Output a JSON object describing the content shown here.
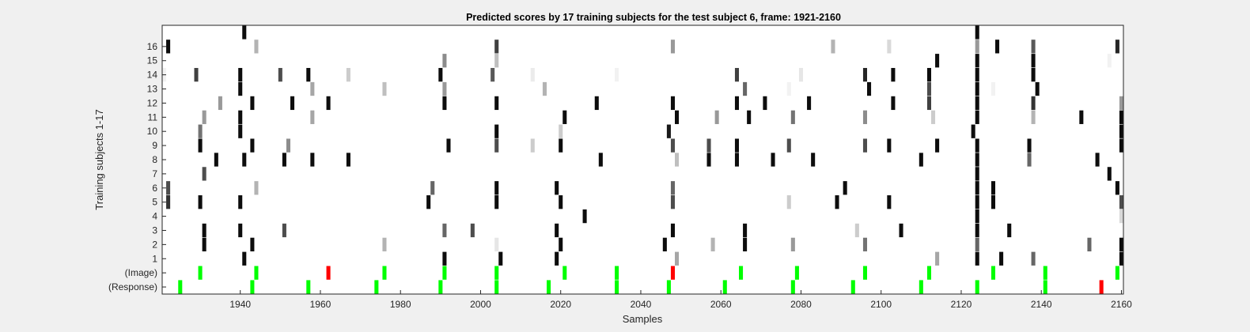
{
  "chart_data": {
    "type": "heatmap",
    "title": "Predicted scores by 17 training subjects for the test subject 6, frame: 1921-2160",
    "xlabel": "Samples",
    "ylabel": "Training subjects 1-17",
    "xlim": [
      1921,
      2160
    ],
    "xticks": [
      1940,
      1960,
      1980,
      2000,
      2020,
      2040,
      2060,
      2080,
      2100,
      2120,
      2140,
      2160
    ],
    "rows": [
      "(Response)",
      "(Image)",
      "1",
      "2",
      "3",
      "4",
      "5",
      "6",
      "7",
      "8",
      "9",
      "10",
      "11",
      "12",
      "13",
      "14",
      "15",
      "16",
      ""
    ],
    "grid": false,
    "colors": {
      "background": "#ffffff",
      "image_correct": "#00ff00",
      "image_wrong": "#ff0000",
      "response_correct": "#00ff00",
      "response_wrong": "#ff0000"
    },
    "markers": {
      "image": [
        {
          "x": 1930,
          "status": "correct"
        },
        {
          "x": 1944,
          "status": "correct"
        },
        {
          "x": 1962,
          "status": "wrong"
        },
        {
          "x": 1976,
          "status": "correct"
        },
        {
          "x": 1991,
          "status": "correct"
        },
        {
          "x": 2004,
          "status": "correct"
        },
        {
          "x": 2021,
          "status": "correct"
        },
        {
          "x": 2034,
          "status": "correct"
        },
        {
          "x": 2048,
          "status": "wrong"
        },
        {
          "x": 2065,
          "status": "correct"
        },
        {
          "x": 2079,
          "status": "correct"
        },
        {
          "x": 2096,
          "status": "correct"
        },
        {
          "x": 2112,
          "status": "correct"
        },
        {
          "x": 2128,
          "status": "correct"
        },
        {
          "x": 2141,
          "status": "correct"
        },
        {
          "x": 2159,
          "status": "correct"
        }
      ],
      "response": [
        {
          "x": 1925,
          "status": "correct"
        },
        {
          "x": 1943,
          "status": "correct"
        },
        {
          "x": 1957,
          "status": "correct"
        },
        {
          "x": 1974,
          "status": "correct"
        },
        {
          "x": 1990,
          "status": "correct"
        },
        {
          "x": 2004,
          "status": "correct"
        },
        {
          "x": 2017,
          "status": "correct"
        },
        {
          "x": 2034,
          "status": "correct"
        },
        {
          "x": 2047,
          "status": "correct"
        },
        {
          "x": 2061,
          "status": "correct"
        },
        {
          "x": 2078,
          "status": "correct"
        },
        {
          "x": 2093,
          "status": "correct"
        },
        {
          "x": 2110,
          "status": "correct"
        },
        {
          "x": 2124,
          "status": "correct"
        },
        {
          "x": 2141,
          "status": "correct"
        },
        {
          "x": 2155,
          "status": "wrong"
        }
      ]
    },
    "scores": [
      {
        "row": "1",
        "cells": [
          [
            1941,
            0.95
          ],
          [
            1991,
            0.95
          ],
          [
            2005,
            0.95
          ],
          [
            2019,
            0.95
          ],
          [
            2049,
            0.35
          ],
          [
            2114,
            0.35
          ],
          [
            2124,
            0.95
          ],
          [
            2130,
            0.95
          ],
          [
            2138,
            0.6
          ],
          [
            2160,
            0.95
          ]
        ]
      },
      {
        "row": "2",
        "cells": [
          [
            1931,
            0.95
          ],
          [
            1943,
            0.95
          ],
          [
            1976,
            0.3
          ],
          [
            2004,
            0.1
          ],
          [
            2020,
            0.95
          ],
          [
            2046,
            0.95
          ],
          [
            2058,
            0.3
          ],
          [
            2066,
            0.95
          ],
          [
            2078,
            0.4
          ],
          [
            2096,
            0.55
          ],
          [
            2124,
            0.6
          ],
          [
            2152,
            0.6
          ],
          [
            2160,
            0.95
          ]
        ]
      },
      {
        "row": "3",
        "cells": [
          [
            1931,
            0.95
          ],
          [
            1940,
            0.95
          ],
          [
            1951,
            0.7
          ],
          [
            1991,
            0.6
          ],
          [
            1998,
            0.7
          ],
          [
            2019,
            0.95
          ],
          [
            2048,
            0.95
          ],
          [
            2066,
            0.95
          ],
          [
            2094,
            0.2
          ],
          [
            2105,
            0.95
          ],
          [
            2124,
            0.95
          ],
          [
            2132,
            0.95
          ],
          [
            2161,
            0.95
          ]
        ]
      },
      {
        "row": "4",
        "cells": [
          [
            2026,
            0.95
          ],
          [
            2124,
            0.95
          ],
          [
            2160,
            0.15
          ]
        ]
      },
      {
        "row": "5",
        "cells": [
          [
            1922,
            0.8
          ],
          [
            1930,
            0.95
          ],
          [
            1940,
            0.95
          ],
          [
            1987,
            0.95
          ],
          [
            2004,
            0.95
          ],
          [
            2020,
            0.95
          ],
          [
            2048,
            0.7
          ],
          [
            2077,
            0.2
          ],
          [
            2089,
            0.95
          ],
          [
            2102,
            0.95
          ],
          [
            2124,
            0.95
          ],
          [
            2128,
            0.95
          ],
          [
            2160,
            0.7
          ]
        ]
      },
      {
        "row": "6",
        "cells": [
          [
            1922,
            0.7
          ],
          [
            1944,
            0.3
          ],
          [
            1988,
            0.6
          ],
          [
            2004,
            0.95
          ],
          [
            2019,
            0.95
          ],
          [
            2048,
            0.6
          ],
          [
            2091,
            0.95
          ],
          [
            2124,
            0.95
          ],
          [
            2128,
            0.95
          ],
          [
            2159,
            0.95
          ]
        ]
      },
      {
        "row": "7",
        "cells": [
          [
            1931,
            0.7
          ],
          [
            2124,
            0.95
          ],
          [
            2157,
            0.95
          ]
        ]
      },
      {
        "row": "8",
        "cells": [
          [
            1934,
            0.95
          ],
          [
            1941,
            0.95
          ],
          [
            1951,
            0.95
          ],
          [
            1958,
            0.95
          ],
          [
            1967,
            0.95
          ],
          [
            2030,
            0.95
          ],
          [
            2049,
            0.25
          ],
          [
            2057,
            0.95
          ],
          [
            2064,
            0.95
          ],
          [
            2073,
            0.95
          ],
          [
            2083,
            0.95
          ],
          [
            2110,
            0.95
          ],
          [
            2124,
            0.95
          ],
          [
            2137,
            0.6
          ],
          [
            2154,
            0.95
          ]
        ]
      },
      {
        "row": "9",
        "cells": [
          [
            1930,
            0.95
          ],
          [
            1943,
            0.95
          ],
          [
            1952,
            0.45
          ],
          [
            1992,
            0.95
          ],
          [
            2004,
            0.7
          ],
          [
            2013,
            0.2
          ],
          [
            2020,
            0.95
          ],
          [
            2048,
            0.7
          ],
          [
            2057,
            0.7
          ],
          [
            2064,
            0.95
          ],
          [
            2077,
            0.7
          ],
          [
            2096,
            0.7
          ],
          [
            2102,
            0.95
          ],
          [
            2114,
            0.95
          ],
          [
            2124,
            0.95
          ],
          [
            2137,
            0.95
          ],
          [
            2160,
            0.95
          ]
        ]
      },
      {
        "row": "10",
        "cells": [
          [
            1930,
            0.55
          ],
          [
            1940,
            0.95
          ],
          [
            2004,
            0.95
          ],
          [
            2020,
            0.2
          ],
          [
            2047,
            0.9
          ],
          [
            2123,
            0.95
          ],
          [
            2160,
            0.95
          ]
        ]
      },
      {
        "row": "11",
        "cells": [
          [
            1931,
            0.4
          ],
          [
            1940,
            0.95
          ],
          [
            1958,
            0.35
          ],
          [
            2021,
            0.95
          ],
          [
            2049,
            0.95
          ],
          [
            2059,
            0.4
          ],
          [
            2067,
            0.95
          ],
          [
            2078,
            0.55
          ],
          [
            2096,
            0.45
          ],
          [
            2113,
            0.2
          ],
          [
            2124,
            0.95
          ],
          [
            2138,
            0.3
          ],
          [
            2150,
            0.95
          ],
          [
            2160,
            0.95
          ]
        ]
      },
      {
        "row": "12",
        "cells": [
          [
            1935,
            0.4
          ],
          [
            1943,
            0.95
          ],
          [
            1953,
            0.95
          ],
          [
            1962,
            0.95
          ],
          [
            1991,
            0.95
          ],
          [
            2004,
            0.95
          ],
          [
            2029,
            0.95
          ],
          [
            2048,
            0.95
          ],
          [
            2064,
            0.95
          ],
          [
            2071,
            0.95
          ],
          [
            2082,
            0.95
          ],
          [
            2103,
            0.95
          ],
          [
            2112,
            0.75
          ],
          [
            2124,
            0.95
          ],
          [
            2138,
            0.8
          ],
          [
            2160,
            0.4
          ]
        ]
      },
      {
        "row": "13",
        "cells": [
          [
            1940,
            0.95
          ],
          [
            1958,
            0.35
          ],
          [
            1976,
            0.25
          ],
          [
            1991,
            0.4
          ],
          [
            2016,
            0.3
          ],
          [
            2066,
            0.6
          ],
          [
            2077,
            0.05
          ],
          [
            2097,
            0.95
          ],
          [
            2112,
            0.7
          ],
          [
            2124,
            0.95
          ],
          [
            2128,
            0.05
          ],
          [
            2139,
            0.95
          ]
        ]
      },
      {
        "row": "14",
        "cells": [
          [
            1921,
            0.05
          ],
          [
            1929,
            0.75
          ],
          [
            1940,
            0.95
          ],
          [
            1950,
            0.7
          ],
          [
            1957,
            0.95
          ],
          [
            1967,
            0.2
          ],
          [
            1990,
            0.95
          ],
          [
            2003,
            0.65
          ],
          [
            2013,
            0.08
          ],
          [
            2034,
            0.05
          ],
          [
            2064,
            0.75
          ],
          [
            2080,
            0.1
          ],
          [
            2096,
            0.85
          ],
          [
            2103,
            0.95
          ],
          [
            2112,
            0.95
          ],
          [
            2124,
            0.95
          ],
          [
            2138,
            0.95
          ]
        ]
      },
      {
        "row": "15",
        "cells": [
          [
            1991,
            0.45
          ],
          [
            2004,
            0.25
          ],
          [
            2114,
            0.95
          ],
          [
            2124,
            0.95
          ],
          [
            2138,
            0.95
          ],
          [
            2157,
            0.05
          ]
        ]
      },
      {
        "row": "16",
        "cells": [
          [
            1922,
            0.95
          ],
          [
            1944,
            0.3
          ],
          [
            2004,
            0.75
          ],
          [
            2048,
            0.4
          ],
          [
            2088,
            0.3
          ],
          [
            2102,
            0.15
          ],
          [
            2124,
            0.4
          ],
          [
            2129,
            0.95
          ],
          [
            2138,
            0.65
          ],
          [
            2159,
            0.85
          ]
        ]
      },
      {
        "row": "",
        "cells": [
          [
            1941,
            0.95
          ],
          [
            2124,
            0.95
          ]
        ]
      }
    ]
  }
}
